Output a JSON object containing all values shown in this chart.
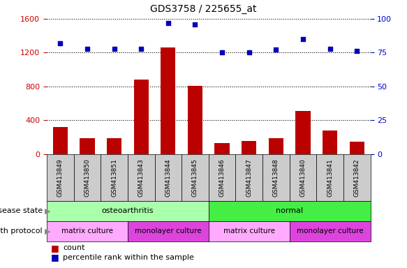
{
  "title": "GDS3758 / 225655_at",
  "samples": [
    "GSM413849",
    "GSM413850",
    "GSM413851",
    "GSM413843",
    "GSM413844",
    "GSM413845",
    "GSM413846",
    "GSM413847",
    "GSM413848",
    "GSM413840",
    "GSM413841",
    "GSM413842"
  ],
  "counts": [
    320,
    185,
    190,
    880,
    1260,
    810,
    130,
    155,
    185,
    510,
    280,
    150
  ],
  "percentile_ranks_pct": [
    82,
    78,
    78,
    78,
    97,
    96,
    75,
    75,
    77,
    85,
    78,
    76
  ],
  "bar_color": "#bb0000",
  "dot_color": "#0000bb",
  "ylim_left": [
    0,
    1600
  ],
  "ylim_right": [
    0,
    100
  ],
  "yticks_left": [
    0,
    400,
    800,
    1200,
    1600
  ],
  "yticks_right": [
    0,
    25,
    50,
    75,
    100
  ],
  "ds_oa_color": "#aaffaa",
  "ds_n_color": "#44ee44",
  "gp_matrix_color": "#ffaaff",
  "gp_monolayer_color": "#dd44dd",
  "xlabel_disease_state": "disease state",
  "xlabel_growth_protocol": "growth protocol",
  "legend_count": "count",
  "legend_percentile": "percentile rank within the sample",
  "grid_color": "#888888",
  "tick_color_left": "#cc0000",
  "tick_color_right": "#0000cc",
  "bg_color": "#ffffff",
  "xticklabel_bg": "#cccccc",
  "gp_starts": [
    0,
    3,
    6,
    9
  ],
  "gp_ends": [
    3,
    6,
    9,
    12
  ],
  "gp_labels": [
    "matrix culture",
    "monolayer culture",
    "matrix culture",
    "monolayer culture"
  ],
  "gp_colors": [
    "#ffaaff",
    "#dd44dd",
    "#ffaaff",
    "#dd44dd"
  ]
}
